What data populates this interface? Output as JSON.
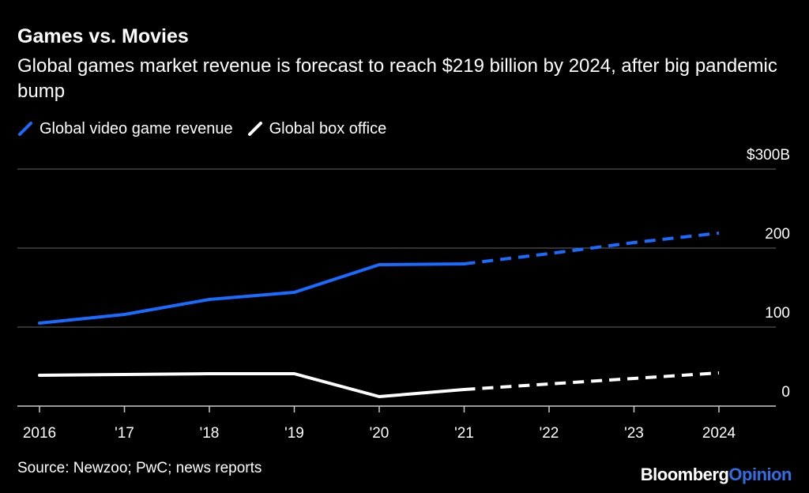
{
  "title": "Games vs. Movies",
  "subtitle": "Global games market revenue is forecast to reach $219 billion by 2024, after big pandemic bump",
  "source": "Source: Newzoo; PwC; news reports",
  "brand": {
    "part1": "Bloomberg",
    "part2": "Opinion"
  },
  "colors": {
    "games": "#1a6bff",
    "box_office": "#ffffff",
    "background": "#000000",
    "grid": "#666666",
    "brand_accent": "#2f6fe4"
  },
  "chart_data": {
    "type": "line",
    "title": "Games vs. Movies",
    "x": [
      "2016",
      "'17",
      "'18",
      "'19",
      "'20",
      "'21",
      "'22",
      "'23",
      "2024"
    ],
    "ylim": [
      0,
      300
    ],
    "yticks": [
      0,
      100,
      200,
      300
    ],
    "ytick_labels": [
      "0",
      "100",
      "200",
      "$300B"
    ],
    "grid": true,
    "legend_position": "top-left",
    "forecast_from_index": 5,
    "series": [
      {
        "name": "Global video game revenue",
        "color": "#1a6bff",
        "values": [
          105,
          116,
          135,
          144,
          179,
          180,
          193,
          207,
          219
        ]
      },
      {
        "name": "Global box office",
        "color": "#ffffff",
        "values": [
          39,
          40,
          41,
          41,
          12,
          21,
          28,
          35,
          42
        ]
      }
    ]
  }
}
